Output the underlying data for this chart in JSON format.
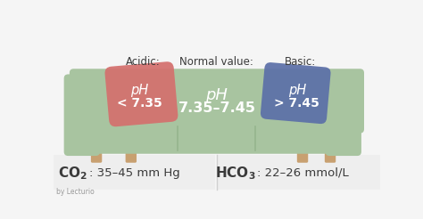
{
  "bg_top": "#f5f5f5",
  "bg_bottom": "#ebebeb",
  "sofa_color": "#a8c4a0",
  "sofa_shadow": "#8aab82",
  "sofa_light": "#b8d0b0",
  "leg_color": "#c8a070",
  "pillow_red": "#d4706e",
  "pillow_blue": "#5c70a8",
  "title_acidic": "Acidic:",
  "title_normal": "Normal value:",
  "title_basic": "Basic:",
  "white": "#ffffff",
  "dark_text": "#3a3a3a",
  "gray_text": "#999999",
  "bottom_divider": "#d0d0d0",
  "credit": "by Lecturio",
  "bottom_left_bold": "CO",
  "bottom_left_sub": "2",
  "bottom_left_rest": ": 35–45 mm Hg",
  "bottom_right_bold": "HCO",
  "bottom_right_sub": "3",
  "bottom_right_rest": ": 22–26 mmol/L"
}
